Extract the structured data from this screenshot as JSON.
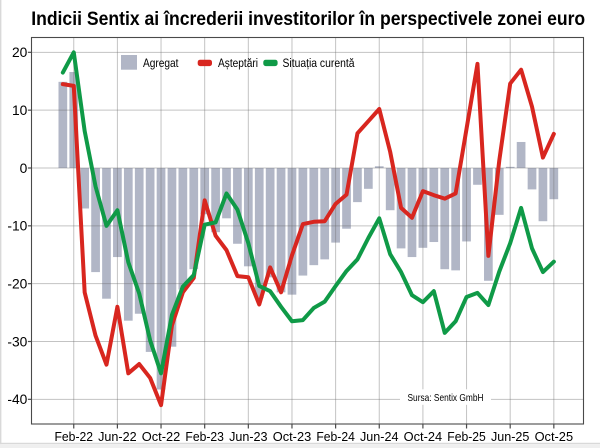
{
  "title": "Indicii Sentix ai încrederii investitorilor în perspectivele zonei euro",
  "source_note": "Sursa: Sentix GmbH",
  "legend": {
    "items": [
      {
        "label": "Agregat",
        "swatch": "square",
        "color": "#b1b6c6"
      },
      {
        "label": "Așteptări",
        "swatch": "line",
        "color": "#d8261f"
      },
      {
        "label": "Situația curentă",
        "swatch": "line",
        "color": "#0f9a47"
      }
    ]
  },
  "colors": {
    "bars": "#b1b6c6",
    "expectations_line": "#d8261f",
    "current_situation_line": "#0f9a47",
    "grid": "rgba(106,106,106,0.40)",
    "frame": "#4a4a4a",
    "tick": "#4a4a4a",
    "text": "#000000",
    "page_edge": "#d9d9d9",
    "page_edge_fill": "#efefef"
  },
  "chart_data": {
    "type": "combo",
    "categories": [
      "Jan-22",
      "Feb-22",
      "Mar-22",
      "Apr-22",
      "May-22",
      "Jun-22",
      "Jul-22",
      "Aug-22",
      "Sep-22",
      "Oct-22",
      "Nov-22",
      "Dec-22",
      "Jan-23",
      "Feb-23",
      "Mar-23",
      "Apr-23",
      "May-23",
      "Jun-23",
      "Jul-23",
      "Aug-23",
      "Sep-23",
      "Oct-23",
      "Nov-23",
      "Dec-23",
      "Jan-24",
      "Feb-24",
      "Mar-24",
      "Apr-24",
      "May-24",
      "Jun-24",
      "Jul-24",
      "Aug-24",
      "Sep-24",
      "Oct-24",
      "Nov-24",
      "Dec-24",
      "Jan-25",
      "Feb-25",
      "Mar-25",
      "Apr-25",
      "May-25",
      "Jun-25",
      "Jul-25",
      "Aug-25",
      "Sep-25",
      "Oct-25"
    ],
    "x_tick_labels": [
      "Feb-22",
      "Jun-22",
      "Oct-22",
      "Feb-23",
      "Jun-23",
      "Oct-23",
      "Feb-24",
      "Jun-24",
      "Oct-24",
      "Feb-25",
      "Jun-25",
      "Oct-25"
    ],
    "y_ticks": [
      20,
      10,
      0,
      -10,
      -20,
      -30,
      -40
    ],
    "ylim": [
      -44.3,
      22.6
    ],
    "grid": true,
    "legend_position": "top-inside",
    "series": [
      {
        "name": "Agregat",
        "kind": "bar",
        "values": [
          14.9,
          16.6,
          -7.0,
          -18.0,
          -22.6,
          -15.4,
          -26.4,
          -25.2,
          -31.8,
          -38.3,
          -30.9,
          -21.0,
          -17.5,
          -8.0,
          -11.1,
          -8.7,
          -13.1,
          -17.0,
          -22.5,
          -18.9,
          -21.5,
          -21.9,
          -18.6,
          -16.8,
          -15.8,
          -12.9,
          -10.5,
          -5.9,
          -3.6,
          0.3,
          -7.3,
          -13.9,
          -15.4,
          -13.8,
          -12.8,
          -17.5,
          -17.7,
          -12.7,
          -2.9,
          -19.5,
          -8.1,
          0.2,
          4.5,
          -3.7,
          -9.2,
          -5.4
        ]
      },
      {
        "name": "Așteptări",
        "kind": "line",
        "values": [
          14.5,
          14.2,
          -21.5,
          -29.0,
          -34.0,
          -24.0,
          -35.5,
          -33.9,
          -36.3,
          -41.0,
          -27.2,
          -21.5,
          -19.0,
          -5.6,
          -11.7,
          -14.2,
          -18.7,
          -18.9,
          -23.6,
          -17.2,
          -21.5,
          -15.1,
          -9.7,
          -9.3,
          -9.2,
          -6.2,
          -4.6,
          6.0,
          8.1,
          10.2,
          2.8,
          -6.9,
          -8.6,
          -4.0,
          -4.7,
          -5.3,
          -4.4,
          6.8,
          18.0,
          -15.2,
          1.3,
          14.6,
          17.0,
          10.6,
          1.8,
          5.9
        ]
      },
      {
        "name": "Situația curentă",
        "kind": "line",
        "values": [
          16.5,
          20.0,
          6.4,
          -3.2,
          -10.0,
          -7.3,
          -16.3,
          -21.7,
          -29.8,
          -35.5,
          -25.4,
          -20.5,
          -18.5,
          -9.8,
          -9.4,
          -4.4,
          -7.2,
          -13.0,
          -20.4,
          -21.3,
          -24.0,
          -26.5,
          -26.3,
          -24.2,
          -23.1,
          -20.4,
          -17.8,
          -15.8,
          -12.1,
          -8.7,
          -14.9,
          -18.0,
          -22.0,
          -23.2,
          -21.3,
          -28.5,
          -26.5,
          -22.3,
          -21.6,
          -23.7,
          -17.9,
          -13.0,
          -6.9,
          -13.9,
          -18.0,
          -16.2
        ]
      }
    ]
  }
}
